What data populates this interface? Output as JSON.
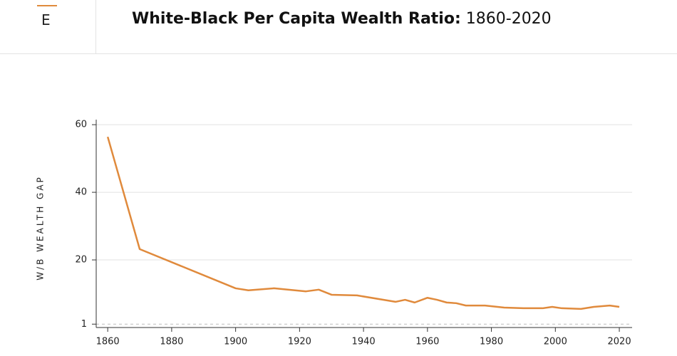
{
  "nav": {
    "label": "E"
  },
  "chart_data": {
    "type": "line",
    "title": "White-Black Per Capita Wealth Ratio:",
    "subtitle": "1860-2020",
    "y_label": "W/B WEALTH GAP",
    "x": [
      1860,
      1870,
      1900,
      1904,
      1912,
      1922,
      1926,
      1930,
      1938,
      1950,
      1953,
      1956,
      1960,
      1963,
      1966,
      1969,
      1972,
      1978,
      1984,
      1990,
      1996,
      1999,
      2002,
      2008,
      2012,
      2017,
      2020
    ],
    "series": [
      {
        "name": "W/B Wealth Gap",
        "color": "#e08a3c",
        "values": [
          56.4,
          23.2,
          11.6,
          11.0,
          11.6,
          10.7,
          11.2,
          9.7,
          9.5,
          7.6,
          8.2,
          7.4,
          8.8,
          8.2,
          7.4,
          7.2,
          6.5,
          6.5,
          5.9,
          5.7,
          5.7,
          6.1,
          5.7,
          5.5,
          6.1,
          6.5,
          6.1
        ]
      }
    ],
    "xlim": [
      1856.4,
      2024
    ],
    "xticks": [
      1860,
      1880,
      1900,
      1920,
      1940,
      1960,
      1980,
      2000,
      2020
    ],
    "ylim": [
      0,
      61.5
    ],
    "yticks": [
      1,
      20,
      40,
      60
    ],
    "grid": true
  }
}
